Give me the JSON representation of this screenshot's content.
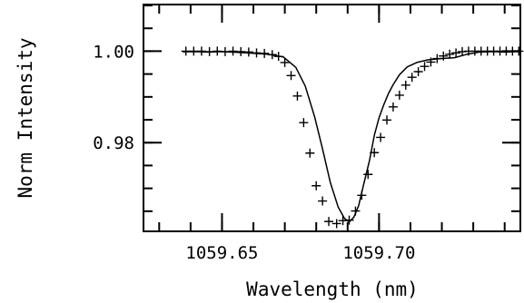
{
  "chart_data": {
    "type": "line",
    "title": "",
    "xlabel": "Wavelength (nm)",
    "ylabel": "Norm Intensity",
    "xlim": [
      1059.625,
      1059.745
    ],
    "ylim": [
      0.9606,
      1.0102
    ],
    "grid": false,
    "legend": "none",
    "x_ticks": [
      {
        "value": 1059.65,
        "label": "1059.65"
      },
      {
        "value": 1059.7,
        "label": "1059.70"
      }
    ],
    "y_ticks": [
      {
        "value": 1.0,
        "label": "1.00"
      },
      {
        "value": 0.98,
        "label": "0.98"
      }
    ],
    "x_minor_step": 0.01,
    "y_minor_step": 0.005,
    "series": [
      {
        "style": "line",
        "color": "#000000",
        "x": [
          1059.6375,
          1059.641,
          1059.6455,
          1059.65,
          1059.6545,
          1059.66,
          1059.6645,
          1059.6695,
          1059.6735,
          1059.6765,
          1059.6795,
          1059.682,
          1059.6845,
          1059.687,
          1059.689,
          1059.6905,
          1059.692,
          1059.6935,
          1059.695,
          1059.697,
          1059.6985,
          1059.7,
          1059.7015,
          1059.703,
          1059.7045,
          1059.7065,
          1059.709,
          1059.712,
          1059.7155,
          1059.7195,
          1059.724,
          1059.728,
          1059.732,
          1059.736,
          1059.74,
          1059.745
        ],
        "y": [
          0.99986,
          0.9999,
          0.99981,
          0.9999,
          0.99976,
          0.99952,
          0.99933,
          0.99876,
          0.99648,
          0.99238,
          0.98562,
          0.97867,
          0.97124,
          0.9659,
          0.96343,
          0.96267,
          0.96371,
          0.96619,
          0.97057,
          0.97619,
          0.98162,
          0.98543,
          0.98829,
          0.99076,
          0.99267,
          0.99486,
          0.99657,
          0.99752,
          0.9981,
          0.99838,
          0.99857,
          0.99933,
          0.99981,
          0.9999,
          0.99981,
          0.9999
        ]
      },
      {
        "style": "plus-markers",
        "color": "#000000",
        "x": [
          1059.6385,
          1059.641,
          1059.6435,
          1059.646,
          1059.6485,
          1059.651,
          1059.6535,
          1059.656,
          1059.6585,
          1059.661,
          1059.6635,
          1059.666,
          1059.668,
          1059.67,
          1059.672,
          1059.674,
          1059.676,
          1059.678,
          1059.68,
          1059.682,
          1059.684,
          1059.6865,
          1059.6885,
          1059.6905,
          1059.6925,
          1059.6945,
          1059.6965,
          1059.6985,
          1059.7005,
          1059.7025,
          1059.7045,
          1059.7065,
          1059.7085,
          1059.7105,
          1059.7125,
          1059.7145,
          1059.7165,
          1059.7185,
          1059.7205,
          1059.7225,
          1059.7245,
          1059.7265,
          1059.7285,
          1059.7305,
          1059.7325,
          1059.7345,
          1059.7365,
          1059.7385,
          1059.7405,
          1059.7425,
          1059.7445
        ],
        "y": [
          1.0,
          1.0,
          1.0,
          0.9999,
          1.0,
          0.9999,
          1.0,
          0.9999,
          0.99981,
          0.99962,
          0.99952,
          0.99924,
          0.99886,
          0.99752,
          0.99467,
          0.99019,
          0.98438,
          0.97771,
          0.97057,
          0.96724,
          0.96276,
          0.96229,
          0.96295,
          0.96305,
          0.96505,
          0.96848,
          0.97305,
          0.97781,
          0.98114,
          0.98495,
          0.98781,
          0.99038,
          0.99257,
          0.99429,
          0.99552,
          0.99667,
          0.99762,
          0.99838,
          0.99895,
          0.99933,
          0.99962,
          0.9999,
          1.0,
          1.0,
          1.0,
          1.0,
          1.0,
          1.0,
          1.0,
          1.0,
          1.0
        ]
      }
    ]
  }
}
